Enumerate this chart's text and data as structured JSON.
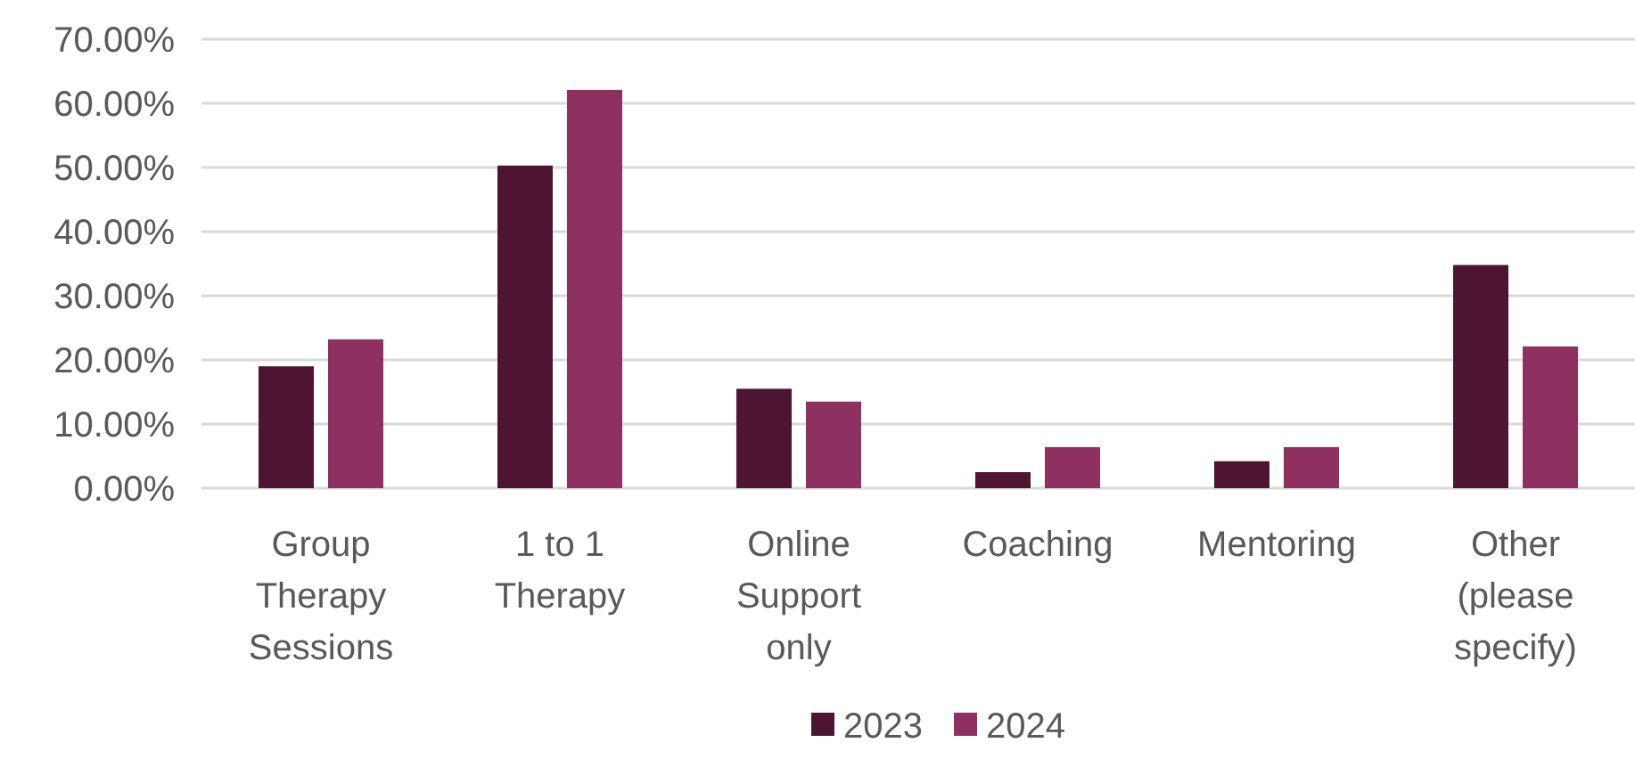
{
  "chart_data": {
    "type": "bar",
    "categories": [
      "Group Therapy Sessions",
      "1 to 1 Therapy",
      "Online Support only",
      "Coaching",
      "Mentoring",
      "Other (please specify)"
    ],
    "series": [
      {
        "name": "2023",
        "color": "#4e1533",
        "values": [
          19.0,
          50.3,
          15.5,
          2.5,
          4.2,
          34.8
        ]
      },
      {
        "name": "2024",
        "color": "#8e3060",
        "values": [
          23.2,
          62.1,
          13.5,
          6.4,
          6.4,
          22.1
        ]
      }
    ],
    "ylim": [
      0,
      70
    ],
    "yticks": [
      {
        "value": 0,
        "label": "0.00%"
      },
      {
        "value": 10,
        "label": "10.00%"
      },
      {
        "value": 20,
        "label": "20.00%"
      },
      {
        "value": 30,
        "label": "30.00%"
      },
      {
        "value": 40,
        "label": "40.00%"
      },
      {
        "value": 50,
        "label": "50.00%"
      },
      {
        "value": 60,
        "label": "60.00%"
      },
      {
        "value": 70,
        "label": "70.00%"
      }
    ],
    "grid": "y",
    "legend": "bottom"
  }
}
